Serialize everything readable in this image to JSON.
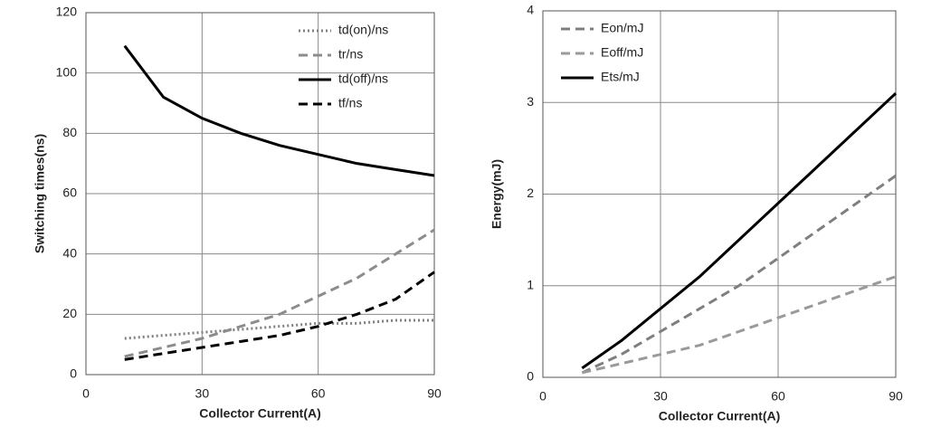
{
  "chart_data": [
    {
      "type": "line",
      "x_label": "Collector Current(A)",
      "y_label": "Switching times(ns)",
      "x": [
        10,
        20,
        30,
        40,
        50,
        60,
        70,
        80,
        90
      ],
      "xlim": [
        0,
        90
      ],
      "xticks": [
        0,
        30,
        60,
        90
      ],
      "ylim": [
        0,
        120
      ],
      "yticks": [
        0,
        20,
        40,
        60,
        80,
        100,
        120
      ],
      "grid": true,
      "legend": "upper-right",
      "series": [
        {
          "name": "td(on)/ns",
          "color": "#808080",
          "dash": "dot",
          "values": [
            12,
            13,
            14,
            15,
            16,
            17,
            17,
            18,
            18
          ]
        },
        {
          "name": "tr/ns",
          "color": "#8c8c8c",
          "dash": "dash",
          "values": [
            6,
            9,
            12,
            16,
            20,
            26,
            32,
            40,
            48
          ]
        },
        {
          "name": "td(off)/ns",
          "color": "#000000",
          "dash": "solid",
          "values": [
            109,
            92,
            85,
            80,
            76,
            73,
            70,
            68,
            66
          ]
        },
        {
          "name": "tf/ns",
          "color": "#000000",
          "dash": "dash",
          "values": [
            5,
            7,
            9,
            11,
            13,
            16,
            20,
            25,
            34
          ]
        }
      ]
    },
    {
      "type": "line",
      "x_label": "Collector Current(A)",
      "y_label": "Energy(mJ)",
      "x": [
        10,
        20,
        30,
        40,
        50,
        60,
        70,
        80,
        90
      ],
      "xlim": [
        0,
        90
      ],
      "xticks": [
        0,
        30,
        60,
        90
      ],
      "ylim": [
        0,
        4
      ],
      "yticks": [
        0,
        1,
        2,
        3,
        4
      ],
      "grid": true,
      "legend": "upper-left",
      "series": [
        {
          "name": "Eon/mJ",
          "color": "#7f7f7f",
          "dash": "dash",
          "values": [
            0.05,
            0.25,
            0.5,
            0.75,
            1.0,
            1.3,
            1.6,
            1.9,
            2.2
          ]
        },
        {
          "name": "Eoff/mJ",
          "color": "#9a9a9a",
          "dash": "dash",
          "values": [
            0.05,
            0.15,
            0.25,
            0.35,
            0.5,
            0.65,
            0.8,
            0.95,
            1.1
          ]
        },
        {
          "name": "Ets/mJ",
          "color": "#000000",
          "dash": "solid",
          "values": [
            0.1,
            0.4,
            0.75,
            1.1,
            1.5,
            1.9,
            2.3,
            2.7,
            3.1
          ]
        }
      ]
    }
  ]
}
